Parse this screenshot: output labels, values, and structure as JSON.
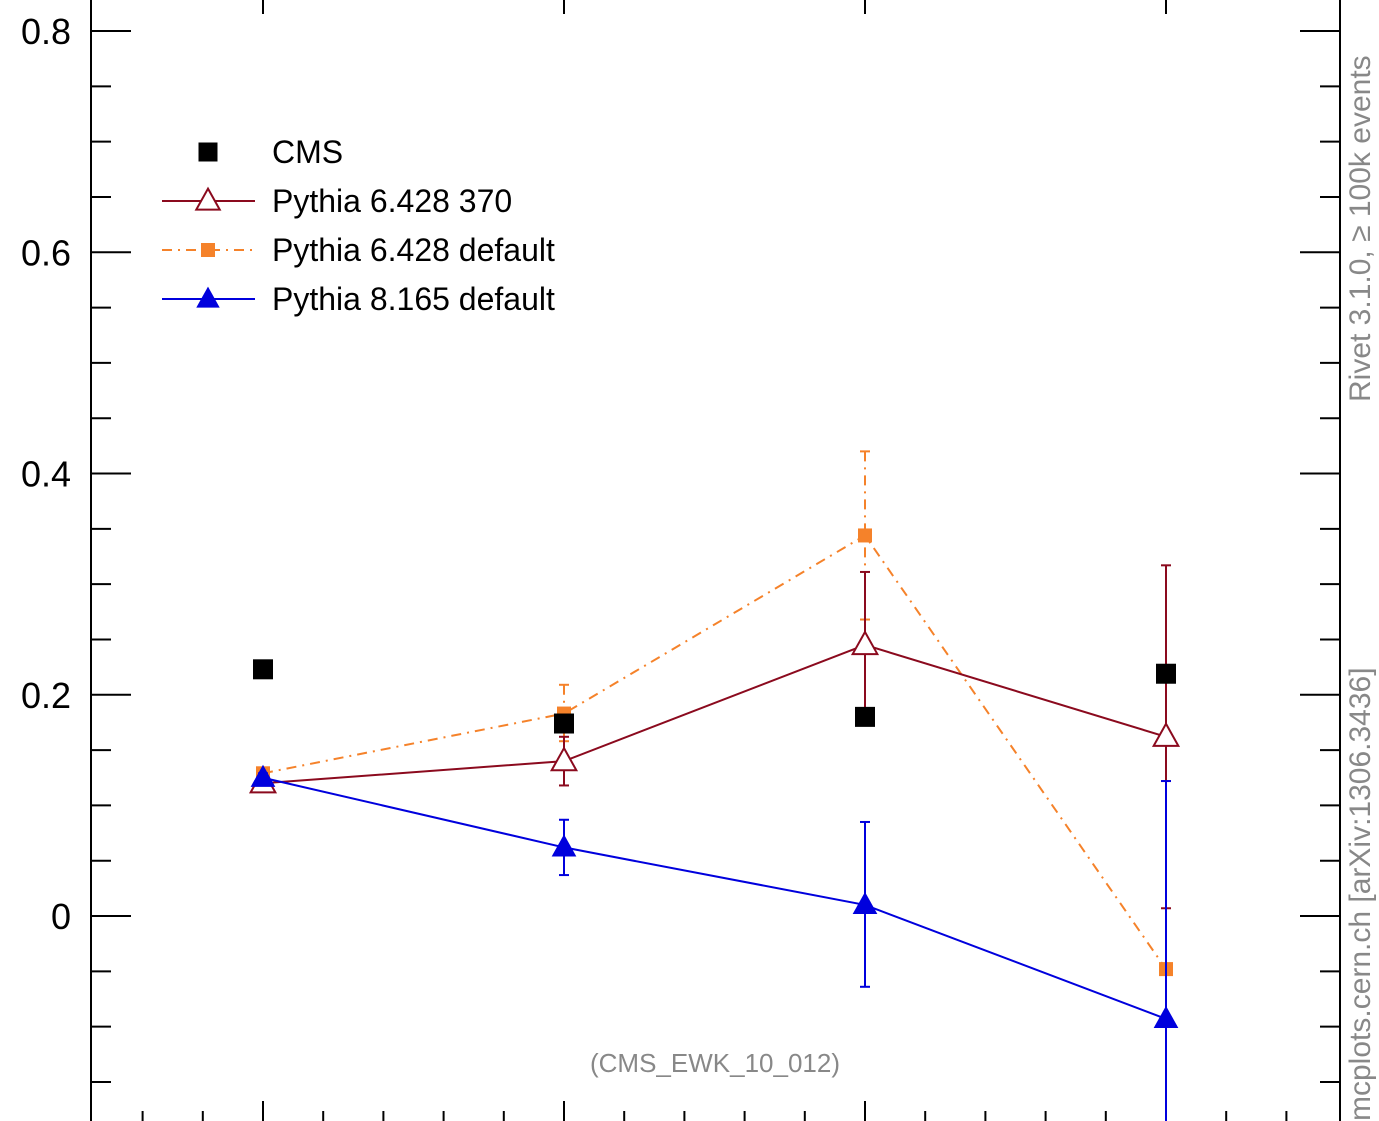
{
  "chart_data": {
    "type": "line",
    "title": "",
    "xlabel": "",
    "ylabel": "",
    "ylim": [
      -0.17,
      0.82
    ],
    "xlim": [
      0.15,
      4.4
    ],
    "x": [
      1,
      2,
      3,
      4
    ],
    "yticks_major": [
      0,
      0.2,
      0.4,
      0.6,
      0.8
    ],
    "ytick_labels": [
      "0",
      "0.2",
      "0.4",
      "0.6",
      "0.8"
    ],
    "series": [
      {
        "name": "CMS",
        "color": "#000000",
        "marker": "filled-square",
        "line": "none",
        "values": [
          0.223,
          0.174,
          0.18,
          0.219
        ]
      },
      {
        "name": "Pythia 6.428 370",
        "color": "#8b0a1e",
        "marker": "open-triangle",
        "line": "solid",
        "values": [
          0.12,
          0.14,
          0.245,
          0.162
        ],
        "err_low": [
          0.005,
          0.022,
          0.065,
          0.155
        ],
        "err_high": [
          0.005,
          0.022,
          0.066,
          0.155
        ]
      },
      {
        "name": "Pythia 6.428 default",
        "color": "#f5822a",
        "marker": "filled-square",
        "line": "dashdot",
        "values": [
          0.129,
          0.183,
          0.344,
          -0.048
        ],
        "err_low": [
          0.004,
          0.025,
          0.076,
          0.17
        ],
        "err_high": [
          0.004,
          0.026,
          0.076,
          0.17
        ]
      },
      {
        "name": "Pythia 8.165 default",
        "color": "#0000dd",
        "marker": "filled-triangle",
        "line": "solid",
        "values": [
          0.125,
          0.062,
          0.01,
          -0.093
        ],
        "err_low": [
          0.004,
          0.025,
          0.074,
          0.12
        ],
        "err_high": [
          0.004,
          0.025,
          0.075,
          0.215
        ]
      }
    ],
    "legend_position": "top-left",
    "grid": false,
    "annotation": "(CMS_EWK_10_012)",
    "side_label_top": "Rivet 3.1.0, ≥ 100k events",
    "side_label_bottom": "mcplots.cern.ch [arXiv:1306.3436]"
  }
}
